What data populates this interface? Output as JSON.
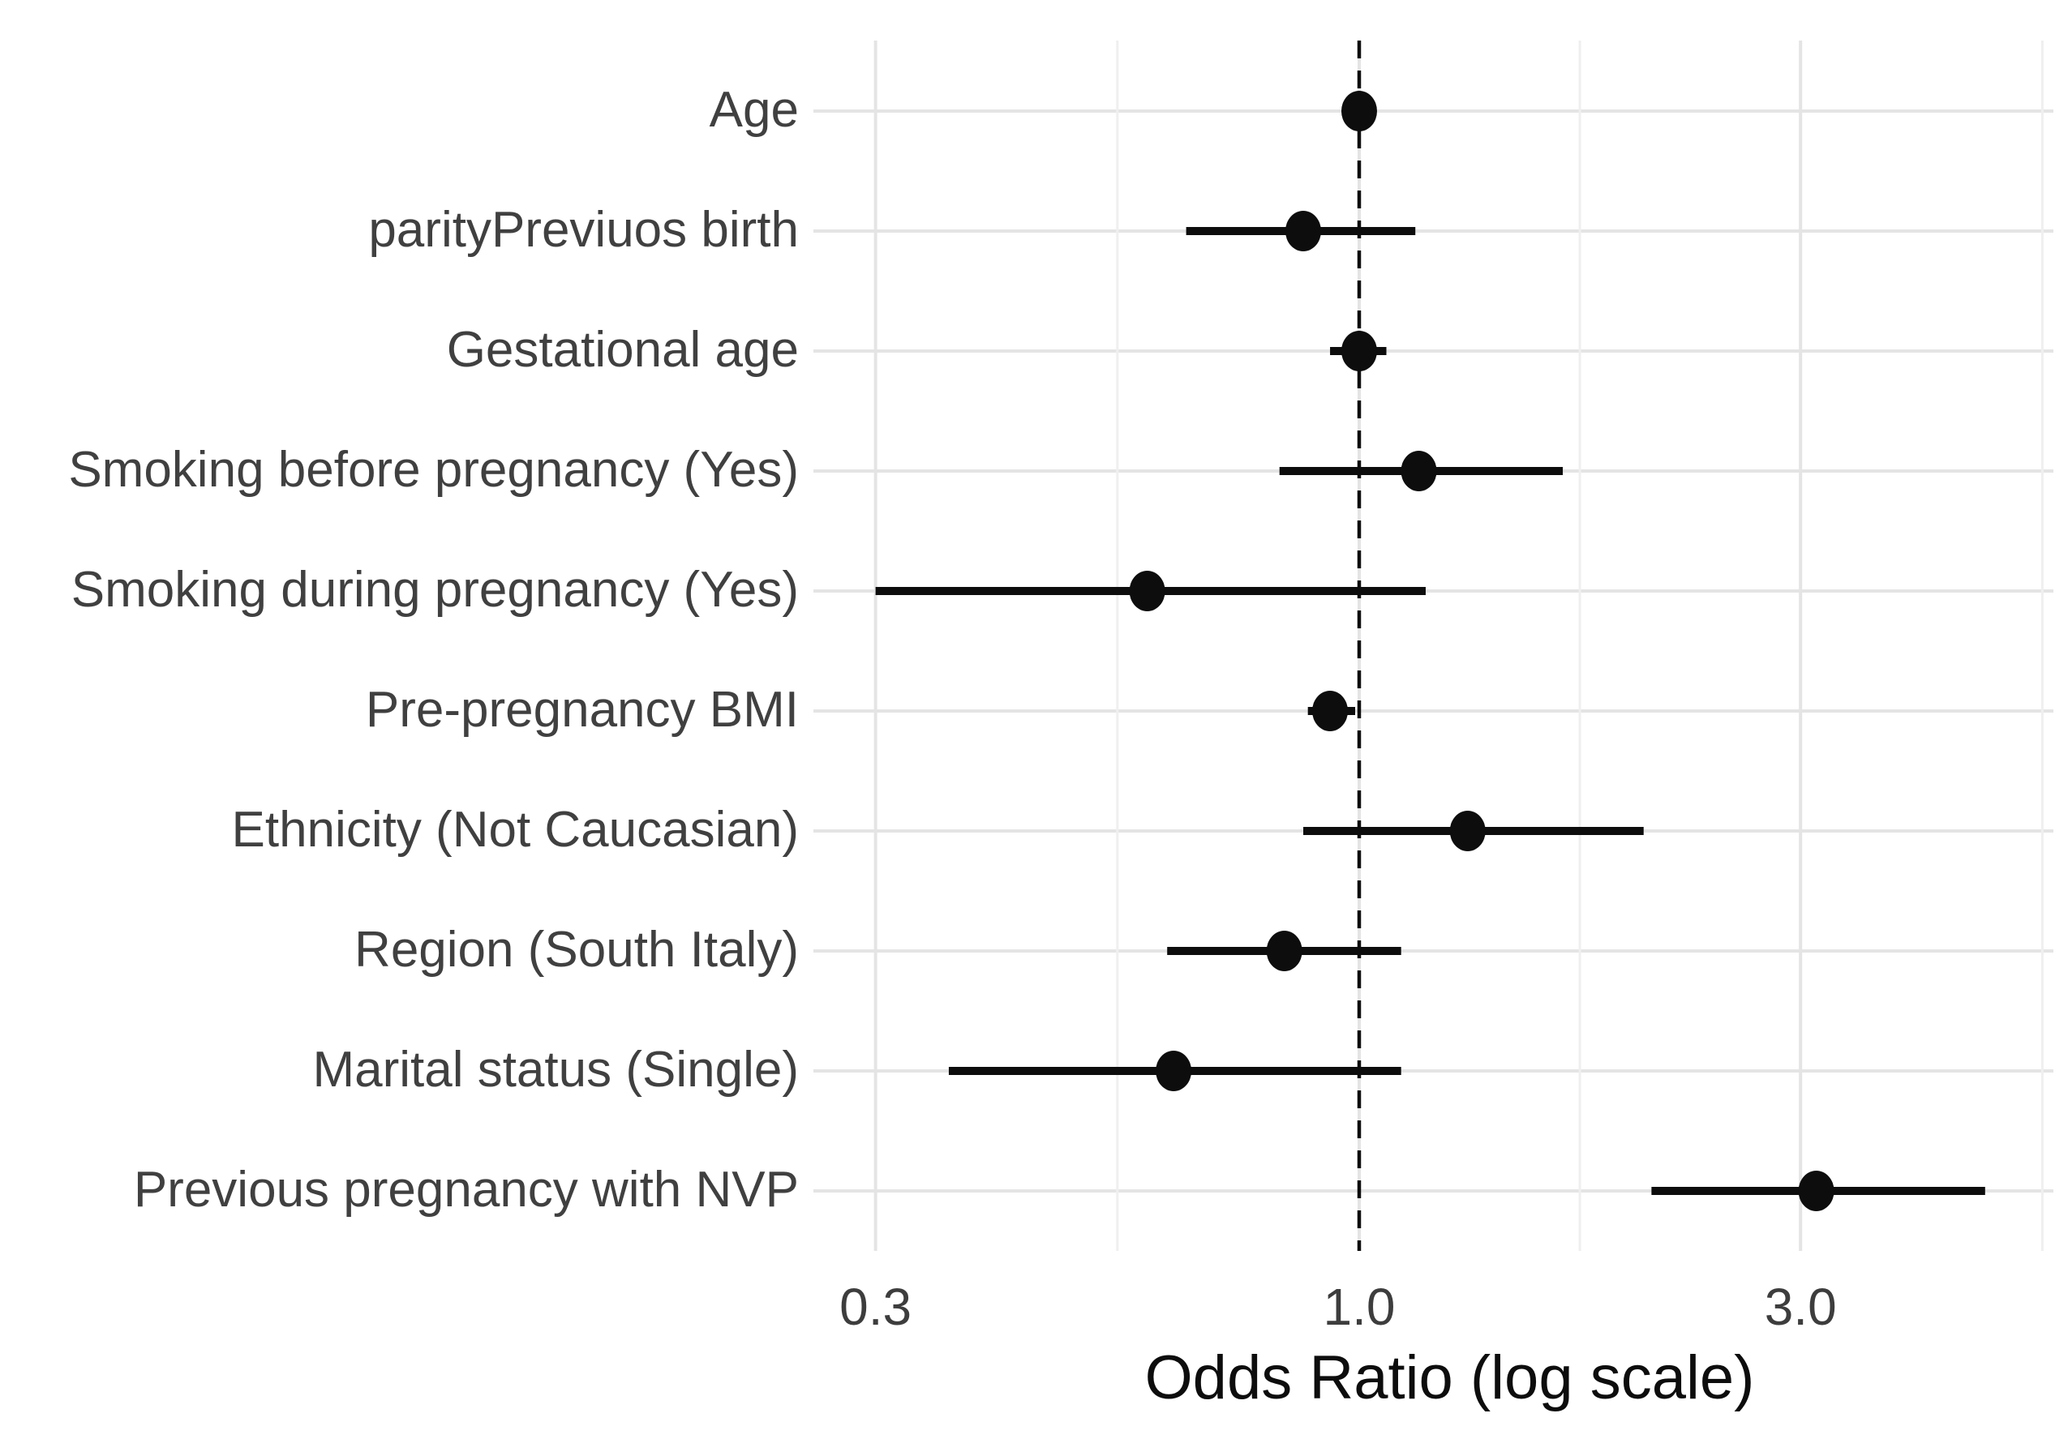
{
  "chart_data": {
    "type": "scatter",
    "subtype": "forest-plot-odds-ratios",
    "title": "",
    "xlabel": "Odds Ratio (log scale)",
    "ylabel": "",
    "x_axis": {
      "scale": "log10",
      "domain": [
        0.257,
        5.63
      ],
      "major_ticks": [
        0.3,
        1.0,
        3.0
      ],
      "tick_labels": [
        "0.3",
        "1.0",
        "3.0"
      ],
      "minor_gridlines": [
        0.5477,
        1.7321,
        5.4772
      ],
      "reference_line": 1.0,
      "reference_line_style": "dashed"
    },
    "grid": "on",
    "legend": "none",
    "rows": [
      {
        "label": "Age",
        "or": 1.0,
        "ci_low": 0.97,
        "ci_high": 1.03
      },
      {
        "label": "parityPreviuos birth",
        "or": 0.87,
        "ci_low": 0.65,
        "ci_high": 1.15
      },
      {
        "label": "Gestational age",
        "or": 1.0,
        "ci_low": 0.93,
        "ci_high": 1.07
      },
      {
        "label": "Smoking before pregnancy (Yes)",
        "or": 1.16,
        "ci_low": 0.82,
        "ci_high": 1.66
      },
      {
        "label": "Smoking during pregnancy (Yes)",
        "or": 0.59,
        "ci_low": 0.3,
        "ci_high": 1.18
      },
      {
        "label": "Pre-pregnancy BMI",
        "or": 0.93,
        "ci_low": 0.88,
        "ci_high": 0.99
      },
      {
        "label": "Ethnicity (Not Caucasian)",
        "or": 1.31,
        "ci_low": 0.87,
        "ci_high": 2.03
      },
      {
        "label": "Region (South Italy)",
        "or": 0.83,
        "ci_low": 0.62,
        "ci_high": 1.11
      },
      {
        "label": "Marital status (Single)",
        "or": 0.63,
        "ci_low": 0.36,
        "ci_high": 1.11
      },
      {
        "label": "Previous pregnancy with NVP",
        "or": 3.12,
        "ci_low": 2.07,
        "ci_high": 4.75
      }
    ],
    "colors": {
      "point": "#0d0d0d",
      "ci_line": "#0d0d0d",
      "reference_line": "#0d0d0d",
      "grid_major": "#e4e4e4",
      "grid_minor": "#efefef",
      "axis_text": "#404040",
      "axis_title": "#0d0d0d",
      "background": "#ffffff"
    }
  }
}
